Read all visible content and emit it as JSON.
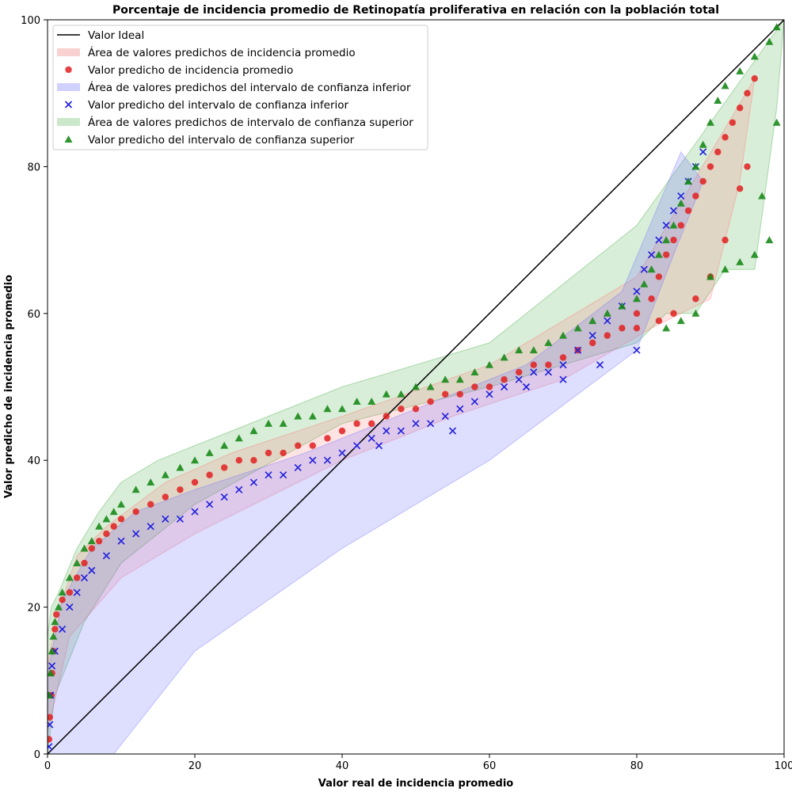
{
  "chart_data": {
    "type": "scatter",
    "title": "Porcentaje de incidencia promedio de Retinopatía proliferativa en relación con la población total",
    "xlabel": "Valor real de incidencia promedio",
    "ylabel": "Valor predicho de incidencia promedio",
    "xlim": [
      0,
      100
    ],
    "ylim": [
      0,
      100
    ],
    "x_ticks": [
      "0",
      "20",
      "40",
      "60",
      "80",
      "100"
    ],
    "y_ticks": [
      "0",
      "20",
      "40",
      "60",
      "80",
      "100"
    ],
    "grid": false,
    "legend_position": "upper-left",
    "legend": [
      {
        "label": "Valor Ideal",
        "kind": "line",
        "color": "#000000"
      },
      {
        "label": "Área de valores predichos de incidencia promedio",
        "kind": "area",
        "color": "#f7b3b3"
      },
      {
        "label": "Valor predicho de incidencia promedio",
        "kind": "marker-circle",
        "color": "#e02020"
      },
      {
        "label": "Área de valores predichos del intervalo de confianza inferior",
        "kind": "area",
        "color": "#b3b3ff"
      },
      {
        "label": "Valor predicho del intervalo de confianza inferior",
        "kind": "marker-x",
        "color": "#1f1fdd"
      },
      {
        "label": "Área de valores predichos de intervalo de confianza superior",
        "kind": "area",
        "color": "#a8d8a8"
      },
      {
        "label": "Valor predicho del intervalo de confianza superior",
        "kind": "marker-triangle",
        "color": "#1a8a1a"
      }
    ],
    "ideal_line": {
      "x": [
        0,
        100
      ],
      "y": [
        0,
        100
      ]
    },
    "areas": [
      {
        "name": "Área de valores predichos de intervalo de confianza superior",
        "color": "#2ca02c",
        "opacity": 0.18,
        "polygon": [
          [
            0,
            0
          ],
          [
            0,
            16
          ],
          [
            0.5,
            20
          ],
          [
            1.5,
            22
          ],
          [
            4,
            28
          ],
          [
            7,
            33
          ],
          [
            10,
            37
          ],
          [
            15,
            40
          ],
          [
            25,
            44
          ],
          [
            40,
            50
          ],
          [
            60,
            56
          ],
          [
            80,
            72
          ],
          [
            100,
            100
          ],
          [
            99,
            88
          ],
          [
            96,
            66
          ],
          [
            92,
            66
          ],
          [
            88,
            60
          ],
          [
            84,
            60
          ],
          [
            80,
            56
          ],
          [
            60,
            50
          ],
          [
            40,
            45
          ],
          [
            20,
            34
          ],
          [
            10,
            26
          ],
          [
            5,
            18
          ],
          [
            1,
            8
          ]
        ]
      },
      {
        "name": "Área de valores predichos de incidencia promedio",
        "color": "#ff6b6b",
        "opacity": 0.18,
        "polygon": [
          [
            0,
            0
          ],
          [
            0,
            12
          ],
          [
            1,
            18
          ],
          [
            4,
            27
          ],
          [
            8,
            31
          ],
          [
            16,
            37
          ],
          [
            25,
            41
          ],
          [
            40,
            46
          ],
          [
            60,
            53
          ],
          [
            80,
            65
          ],
          [
            96,
            92
          ],
          [
            94,
            78
          ],
          [
            90,
            62
          ],
          [
            86,
            60
          ],
          [
            82,
            58
          ],
          [
            70,
            51
          ],
          [
            55,
            46
          ],
          [
            40,
            40
          ],
          [
            20,
            30
          ],
          [
            10,
            24
          ],
          [
            3,
            16
          ],
          [
            0,
            3
          ]
        ]
      },
      {
        "name": "Área de valores predichos del intervalo de confianza inferior",
        "color": "#6b6bff",
        "opacity": 0.22,
        "polygon": [
          [
            0,
            0
          ],
          [
            0,
            11
          ],
          [
            2,
            21
          ],
          [
            6,
            28
          ],
          [
            12,
            33
          ],
          [
            20,
            36
          ],
          [
            35,
            41
          ],
          [
            50,
            47
          ],
          [
            65,
            53
          ],
          [
            78,
            63
          ],
          [
            86,
            82
          ],
          [
            89,
            78
          ],
          [
            85,
            68
          ],
          [
            80,
            55
          ],
          [
            60,
            40
          ],
          [
            40,
            28
          ],
          [
            20,
            14
          ],
          [
            9,
            0
          ]
        ]
      }
    ],
    "series": [
      {
        "name": "Valor predicho de incidencia promedio",
        "marker": "circle",
        "color": "#e02020",
        "points": [
          [
            0.2,
            2
          ],
          [
            0.3,
            5
          ],
          [
            0.5,
            8
          ],
          [
            0.6,
            11
          ],
          [
            0.8,
            14
          ],
          [
            1,
            17
          ],
          [
            1.2,
            19
          ],
          [
            2,
            21
          ],
          [
            3,
            22
          ],
          [
            4,
            24
          ],
          [
            5,
            26
          ],
          [
            6,
            28
          ],
          [
            7,
            29
          ],
          [
            8,
            30
          ],
          [
            9,
            31
          ],
          [
            10,
            32
          ],
          [
            12,
            33
          ],
          [
            14,
            34
          ],
          [
            16,
            35
          ],
          [
            18,
            36
          ],
          [
            20,
            37
          ],
          [
            22,
            38
          ],
          [
            24,
            39
          ],
          [
            26,
            40
          ],
          [
            28,
            40
          ],
          [
            30,
            41
          ],
          [
            32,
            41
          ],
          [
            34,
            42
          ],
          [
            36,
            42
          ],
          [
            38,
            43
          ],
          [
            40,
            44
          ],
          [
            42,
            45
          ],
          [
            44,
            45
          ],
          [
            46,
            46
          ],
          [
            48,
            47
          ],
          [
            50,
            47
          ],
          [
            52,
            48
          ],
          [
            54,
            49
          ],
          [
            56,
            49
          ],
          [
            58,
            50
          ],
          [
            60,
            50
          ],
          [
            62,
            51
          ],
          [
            64,
            52
          ],
          [
            66,
            53
          ],
          [
            68,
            53
          ],
          [
            70,
            54
          ],
          [
            72,
            55
          ],
          [
            74,
            56
          ],
          [
            76,
            57
          ],
          [
            78,
            58
          ],
          [
            80,
            60
          ],
          [
            82,
            62
          ],
          [
            83,
            65
          ],
          [
            84,
            68
          ],
          [
            85,
            70
          ],
          [
            86,
            72
          ],
          [
            87,
            74
          ],
          [
            88,
            76
          ],
          [
            89,
            78
          ],
          [
            90,
            80
          ],
          [
            91,
            82
          ],
          [
            92,
            84
          ],
          [
            93,
            86
          ],
          [
            94,
            88
          ],
          [
            95,
            90
          ],
          [
            96,
            92
          ],
          [
            90,
            65
          ],
          [
            92,
            70
          ],
          [
            94,
            77
          ],
          [
            95,
            80
          ],
          [
            88,
            62
          ],
          [
            85,
            60
          ],
          [
            83,
            59
          ],
          [
            80,
            58
          ]
        ]
      },
      {
        "name": "Valor predicho del intervalo de confianza inferior",
        "marker": "x",
        "color": "#1f1fdd",
        "points": [
          [
            0.2,
            1
          ],
          [
            0.3,
            4
          ],
          [
            0.4,
            8
          ],
          [
            0.6,
            12
          ],
          [
            1,
            14
          ],
          [
            2,
            17
          ],
          [
            3,
            20
          ],
          [
            4,
            22
          ],
          [
            5,
            24
          ],
          [
            6,
            25
          ],
          [
            8,
            27
          ],
          [
            10,
            29
          ],
          [
            12,
            30
          ],
          [
            14,
            31
          ],
          [
            16,
            32
          ],
          [
            18,
            32
          ],
          [
            20,
            33
          ],
          [
            22,
            34
          ],
          [
            24,
            35
          ],
          [
            26,
            36
          ],
          [
            28,
            37
          ],
          [
            30,
            38
          ],
          [
            32,
            38
          ],
          [
            34,
            39
          ],
          [
            36,
            40
          ],
          [
            38,
            40
          ],
          [
            40,
            41
          ],
          [
            42,
            42
          ],
          [
            44,
            43
          ],
          [
            46,
            44
          ],
          [
            48,
            44
          ],
          [
            50,
            45
          ],
          [
            52,
            45
          ],
          [
            54,
            46
          ],
          [
            56,
            47
          ],
          [
            58,
            48
          ],
          [
            60,
            49
          ],
          [
            62,
            50
          ],
          [
            64,
            51
          ],
          [
            66,
            52
          ],
          [
            68,
            52
          ],
          [
            70,
            53
          ],
          [
            72,
            55
          ],
          [
            74,
            57
          ],
          [
            76,
            59
          ],
          [
            78,
            61
          ],
          [
            80,
            63
          ],
          [
            81,
            66
          ],
          [
            82,
            68
          ],
          [
            83,
            70
          ],
          [
            84,
            72
          ],
          [
            85,
            74
          ],
          [
            86,
            76
          ],
          [
            87,
            78
          ],
          [
            88,
            80
          ],
          [
            89,
            82
          ],
          [
            80,
            55
          ],
          [
            75,
            53
          ],
          [
            70,
            51
          ],
          [
            65,
            50
          ],
          [
            55,
            44
          ],
          [
            45,
            42
          ]
        ]
      },
      {
        "name": "Valor predicho del intervalo de confianza superior",
        "marker": "triangle",
        "color": "#1a8a1a",
        "points": [
          [
            0.2,
            8
          ],
          [
            0.4,
            11
          ],
          [
            0.6,
            14
          ],
          [
            0.8,
            16
          ],
          [
            1,
            18
          ],
          [
            1.5,
            20
          ],
          [
            2,
            22
          ],
          [
            3,
            24
          ],
          [
            4,
            26
          ],
          [
            5,
            28
          ],
          [
            6,
            29
          ],
          [
            7,
            31
          ],
          [
            8,
            32
          ],
          [
            9,
            33
          ],
          [
            10,
            34
          ],
          [
            12,
            36
          ],
          [
            14,
            37
          ],
          [
            16,
            38
          ],
          [
            18,
            39
          ],
          [
            20,
            40
          ],
          [
            22,
            41
          ],
          [
            24,
            42
          ],
          [
            26,
            43
          ],
          [
            28,
            44
          ],
          [
            30,
            45
          ],
          [
            32,
            45
          ],
          [
            34,
            46
          ],
          [
            36,
            46
          ],
          [
            38,
            47
          ],
          [
            40,
            47
          ],
          [
            42,
            48
          ],
          [
            44,
            48
          ],
          [
            46,
            49
          ],
          [
            48,
            49
          ],
          [
            50,
            50
          ],
          [
            52,
            50
          ],
          [
            54,
            51
          ],
          [
            56,
            51
          ],
          [
            58,
            52
          ],
          [
            60,
            53
          ],
          [
            62,
            54
          ],
          [
            64,
            55
          ],
          [
            66,
            55
          ],
          [
            68,
            56
          ],
          [
            70,
            57
          ],
          [
            72,
            58
          ],
          [
            74,
            59
          ],
          [
            76,
            60
          ],
          [
            78,
            61
          ],
          [
            80,
            62
          ],
          [
            81,
            64
          ],
          [
            82,
            66
          ],
          [
            83,
            68
          ],
          [
            84,
            70
          ],
          [
            85,
            72
          ],
          [
            86,
            75
          ],
          [
            87,
            78
          ],
          [
            88,
            80
          ],
          [
            89,
            83
          ],
          [
            90,
            86
          ],
          [
            91,
            89
          ],
          [
            92,
            91
          ],
          [
            94,
            93
          ],
          [
            96,
            95
          ],
          [
            98,
            97
          ],
          [
            99,
            99
          ],
          [
            97,
            76
          ],
          [
            98,
            70
          ],
          [
            96,
            68
          ],
          [
            94,
            67
          ],
          [
            92,
            66
          ],
          [
            90,
            65
          ],
          [
            88,
            60
          ],
          [
            86,
            59
          ],
          [
            84,
            58
          ],
          [
            99,
            86
          ]
        ]
      }
    ]
  }
}
